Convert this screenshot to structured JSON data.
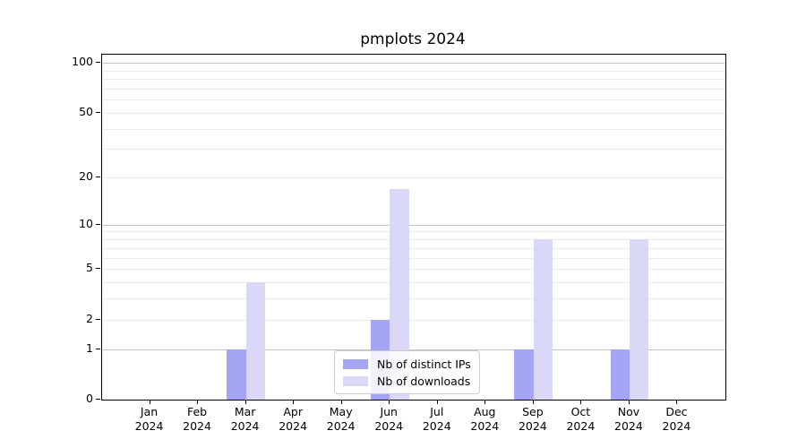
{
  "figure": {
    "background": "#ffffff"
  },
  "chart_data": {
    "type": "bar",
    "title": "pmplots 2024",
    "xlabel": "",
    "ylabel": "",
    "grid": true,
    "x": {
      "categories": [
        "Jan",
        "Feb",
        "Mar",
        "Apr",
        "May",
        "Jun",
        "Jul",
        "Aug",
        "Sep",
        "Oct",
        "Nov",
        "Dec"
      ],
      "year_label": "2024"
    },
    "series": [
      {
        "name": "Nb of distinct IPs",
        "color": "#a5a5f6",
        "values": [
          0,
          0,
          1,
          0,
          0,
          2,
          0,
          0,
          1,
          0,
          1,
          0
        ]
      },
      {
        "name": "Nb of downloads",
        "color": "#d9d9f7",
        "values": [
          0,
          0,
          4,
          0,
          0,
          17,
          0,
          0,
          8,
          0,
          8,
          0
        ]
      }
    ],
    "y_axis": {
      "scale": "log1p",
      "ylim": [
        0,
        112
      ],
      "tick_values": [
        0,
        1,
        2,
        5,
        10,
        20,
        50,
        100
      ],
      "tick_labels": [
        "0",
        "1",
        "2",
        "5",
        "10",
        "20",
        "50",
        "100"
      ],
      "major_gridlines": [
        1,
        10,
        100
      ],
      "minor_gridlines": [
        2,
        3,
        4,
        5,
        6,
        7,
        8,
        9,
        20,
        30,
        40,
        50,
        60,
        70,
        80,
        90
      ],
      "major_grid_color": "#c2c2c2",
      "minor_grid_color": "#ececec"
    },
    "legend": {
      "position": "lower center",
      "entries": [
        "Nb of distinct IPs",
        "Nb of downloads"
      ]
    }
  }
}
